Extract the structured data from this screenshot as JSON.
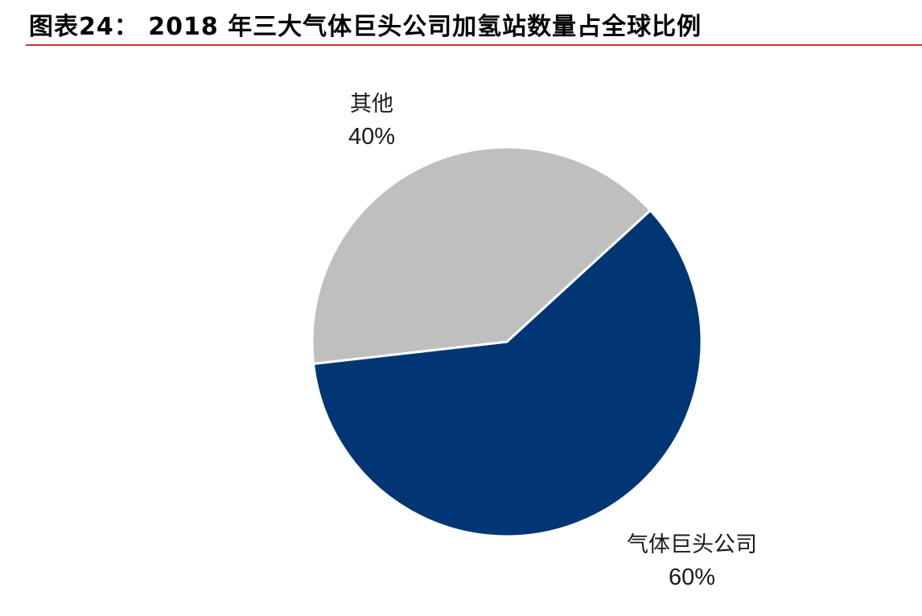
{
  "figure": {
    "title": "图表24：  2018 年三大气体巨头公司加氢站数量占全球比例"
  },
  "chart_data": {
    "type": "pie",
    "title": "图表24：  2018 年三大气体巨头公司加氢站数量占全球比例",
    "slices": [
      {
        "label": "气体巨头公司",
        "value": 60,
        "value_label": "60%",
        "color": "#003673"
      },
      {
        "label": "其他",
        "value": 40,
        "value_label": "40%",
        "color": "#bfbfbf"
      }
    ],
    "legend": "none",
    "labels": "outside"
  }
}
